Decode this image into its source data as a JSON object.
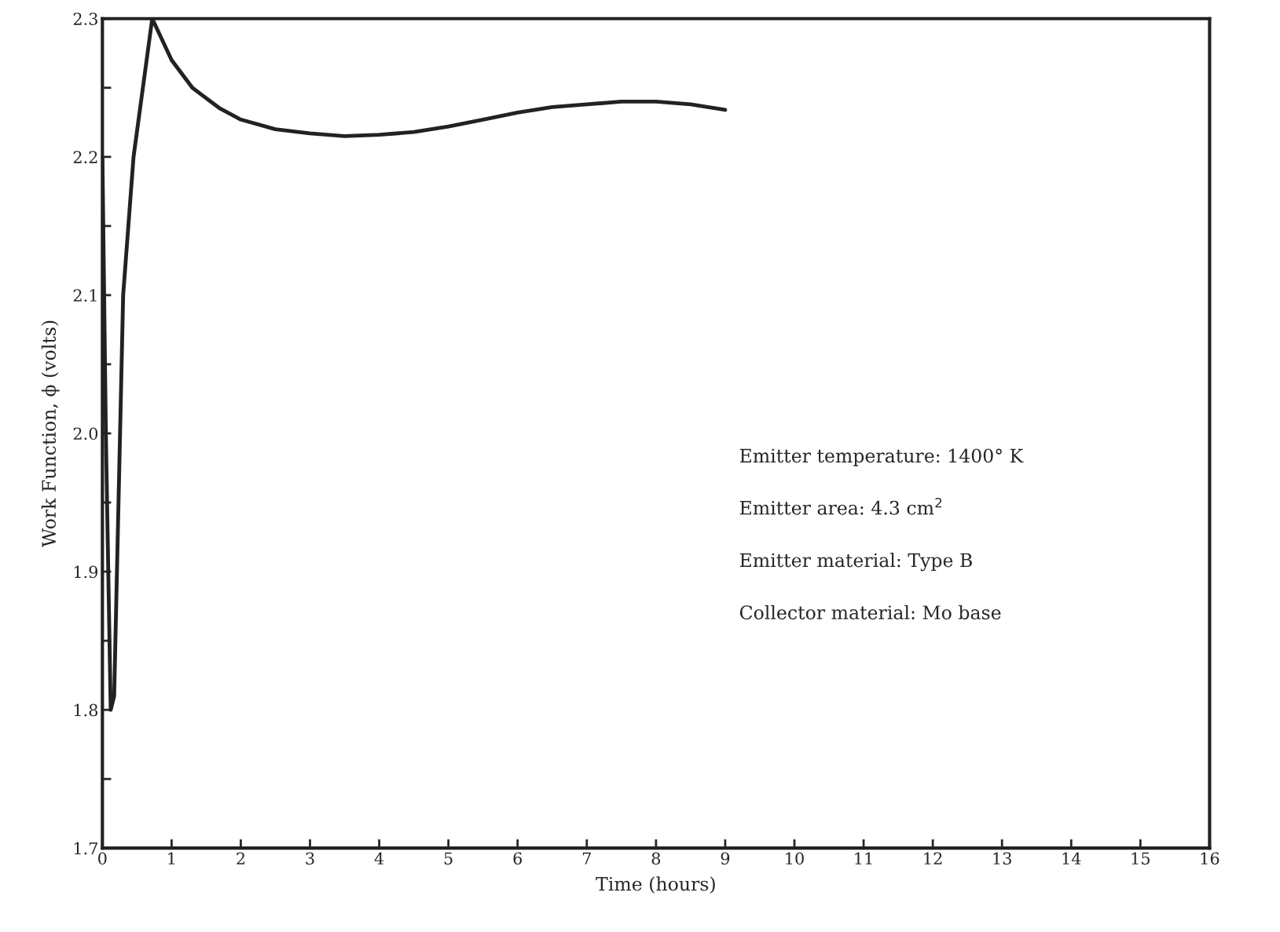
{
  "chart_data": {
    "type": "line",
    "xlabel": "Time (hours)",
    "ylabel": "Work Function, ϕ (volts)",
    "x": [
      0,
      0.05,
      0.12,
      0.17,
      0.3,
      0.45,
      0.72,
      1.0,
      1.3,
      1.7,
      2,
      2.5,
      3,
      3.5,
      4,
      4.5,
      5,
      5.5,
      6,
      6.5,
      7,
      7.5,
      8,
      8.5,
      9
    ],
    "series": [
      {
        "color": "#222222",
        "values": [
          2.2,
          2.0,
          1.8,
          1.81,
          2.1,
          2.2,
          2.3,
          2.27,
          2.25,
          2.235,
          2.227,
          2.22,
          2.217,
          2.215,
          2.216,
          2.218,
          2.222,
          2.227,
          2.232,
          2.236,
          2.238,
          2.24,
          2.24,
          2.238,
          2.234
        ]
      }
    ],
    "xlim": [
      0,
      16
    ],
    "ylim": [
      1.7,
      2.3
    ],
    "xticks": [
      0,
      1,
      2,
      3,
      4,
      5,
      6,
      7,
      8,
      9,
      10,
      11,
      12,
      13,
      14,
      15,
      16
    ],
    "yticks": [
      {
        "value": 1.7,
        "label": "1.7"
      },
      {
        "value": 1.75,
        "label": null
      },
      {
        "value": 1.8,
        "label": "1.8"
      },
      {
        "value": 1.85,
        "label": null
      },
      {
        "value": 1.9,
        "label": "1.9"
      },
      {
        "value": 1.95,
        "label": null
      },
      {
        "value": 2.0,
        "label": "2.0"
      },
      {
        "value": 2.05,
        "label": null
      },
      {
        "value": 2.1,
        "label": "2.1"
      },
      {
        "value": 2.15,
        "label": null
      },
      {
        "value": 2.2,
        "label": "2.2"
      },
      {
        "value": 2.25,
        "label": null
      },
      {
        "value": 2.3,
        "label": "2.3"
      }
    ],
    "annotations": [
      "Emitter temperature: 1400° K",
      "Emitter area: 4.3 cm$^{2}$",
      "Emitter material: Type B",
      "Collector material: Mo base"
    ],
    "grid": false,
    "legend": false,
    "marker": "none",
    "line_style": "solid"
  }
}
